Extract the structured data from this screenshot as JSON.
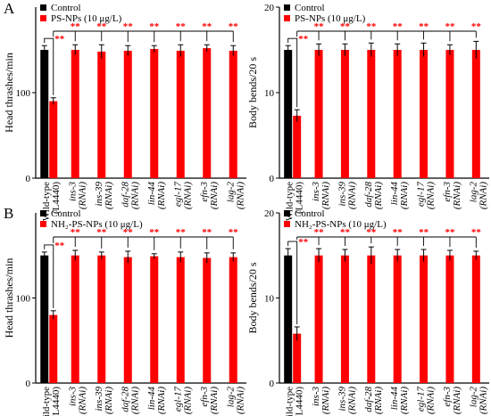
{
  "figure": {
    "panel_letters": [
      "A",
      "B"
    ]
  },
  "colors": {
    "control": "#000000",
    "treatment": "#ff0000",
    "significance": "#ff0000"
  },
  "chart_data": [
    {
      "id": "A-left",
      "type": "bar",
      "panel": "A",
      "title": "",
      "xlabel": "",
      "ylabel": "Head thrashes/min",
      "ylim": [
        0,
        200
      ],
      "yticks": [
        0,
        100
      ],
      "grid": false,
      "legend_position": "top-left",
      "categories": [
        {
          "line1": "Wild-type",
          "line2": "(L4440)",
          "italic": false
        },
        {
          "line1": "ins-3",
          "line2": "(RNAi)",
          "italic": true
        },
        {
          "line1": "ins-39",
          "line2": "(RNAi)",
          "italic": true
        },
        {
          "line1": "daf-28",
          "line2": "(RNAi)",
          "italic": true
        },
        {
          "line1": "lin-44",
          "line2": "(RNAi)",
          "italic": true
        },
        {
          "line1": "egl-17",
          "line2": "(RNAi)",
          "italic": true
        },
        {
          "line1": "efn-3",
          "line2": "(RNAi)",
          "italic": true
        },
        {
          "line1": "lag-2",
          "line2": "(RNAi)",
          "italic": true
        }
      ],
      "series": [
        {
          "name": "Control",
          "color": "#000000",
          "values": [
            150,
            null,
            null,
            null,
            null,
            null,
            null,
            null
          ],
          "errors": [
            5,
            null,
            null,
            null,
            null,
            null,
            null,
            null
          ]
        },
        {
          "name": "PS-NPs (10 μg/L)",
          "color": "#ff0000",
          "values": [
            90,
            150,
            148,
            149,
            151,
            149,
            152,
            149
          ],
          "errors": [
            4,
            6,
            8,
            6,
            4,
            7,
            4,
            6
          ]
        }
      ],
      "annotations": {
        "marker": "**",
        "vs_control": "**",
        "bracket_targets": [
          "**",
          "**",
          "**",
          "**",
          "**",
          "**",
          "**"
        ]
      }
    },
    {
      "id": "A-right",
      "type": "bar",
      "panel": "A",
      "title": "",
      "xlabel": "",
      "ylabel": "Body bends/20 s",
      "ylim": [
        0,
        20
      ],
      "yticks": [
        0,
        10,
        20
      ],
      "grid": false,
      "legend_position": "top-left",
      "categories": [
        {
          "line1": "Wild-type",
          "line2": "(L4440)",
          "italic": false
        },
        {
          "line1": "ins-3",
          "line2": "(RNAi)",
          "italic": true
        },
        {
          "line1": "ins-39",
          "line2": "(RNAi)",
          "italic": true
        },
        {
          "line1": "daf-28",
          "line2": "(RNAi)",
          "italic": true
        },
        {
          "line1": "lin-44",
          "line2": "(RNAi)",
          "italic": true
        },
        {
          "line1": "egl-17",
          "line2": "(RNAi)",
          "italic": true
        },
        {
          "line1": "efn-3",
          "line2": "(RNAi)",
          "italic": true
        },
        {
          "line1": "lag-2",
          "line2": "(RNAi)",
          "italic": true
        }
      ],
      "series": [
        {
          "name": "Control",
          "color": "#000000",
          "values": [
            15,
            null,
            null,
            null,
            null,
            null,
            null,
            null
          ],
          "errors": [
            0.5,
            null,
            null,
            null,
            null,
            null,
            null,
            null
          ]
        },
        {
          "name": "PS-NPs (10 μg/L)",
          "color": "#ff0000",
          "values": [
            7.3,
            15,
            15,
            15,
            15,
            15,
            15,
            15
          ],
          "errors": [
            0.7,
            0.7,
            0.7,
            0.8,
            0.7,
            0.8,
            0.6,
            1.0
          ]
        }
      ],
      "annotations": {
        "marker": "**",
        "vs_control": "**",
        "bracket_targets": [
          "**",
          "**",
          "**",
          "**",
          "**",
          "**",
          "**"
        ]
      }
    },
    {
      "id": "B-left",
      "type": "bar",
      "panel": "B",
      "title": "",
      "xlabel": "",
      "ylabel": "Head thrashes/min",
      "ylim": [
        0,
        200
      ],
      "yticks": [
        0,
        100
      ],
      "grid": false,
      "legend_position": "top-left",
      "categories": [
        {
          "line1": "Wild-type",
          "line2": "(L4440)",
          "italic": false
        },
        {
          "line1": "ins-3",
          "line2": "(RNAi)",
          "italic": true
        },
        {
          "line1": "ins-39",
          "line2": "(RNAi)",
          "italic": true
        },
        {
          "line1": "daf-28",
          "line2": "(RNAi)",
          "italic": true
        },
        {
          "line1": "lin-44",
          "line2": "(RNAi)",
          "italic": true
        },
        {
          "line1": "egl-17",
          "line2": "(RNAi)",
          "italic": true
        },
        {
          "line1": "efn-3",
          "line2": "(RNAi)",
          "italic": true
        },
        {
          "line1": "lag-2",
          "line2": "(RNAi)",
          "italic": true
        }
      ],
      "series": [
        {
          "name": "Control",
          "color": "#000000",
          "values": [
            150,
            null,
            null,
            null,
            null,
            null,
            null,
            null
          ],
          "errors": [
            4,
            null,
            null,
            null,
            null,
            null,
            null,
            null
          ]
        },
        {
          "name": "NH₂-PS-NPs (10 μg/L)",
          "color": "#ff0000",
          "values": [
            80,
            150,
            150,
            148,
            149,
            148,
            147,
            148
          ],
          "errors": [
            5,
            6,
            4,
            7,
            3,
            6,
            6,
            5
          ]
        }
      ],
      "annotations": {
        "marker": "**",
        "vs_control": "**",
        "bracket_targets": [
          "**",
          "**",
          "**",
          "**",
          "**",
          "**",
          "**"
        ]
      }
    },
    {
      "id": "B-right",
      "type": "bar",
      "panel": "B",
      "title": "",
      "xlabel": "",
      "ylabel": "Body bends/20 s",
      "ylim": [
        0,
        20
      ],
      "yticks": [
        0,
        10,
        20
      ],
      "grid": false,
      "legend_position": "top-left",
      "categories": [
        {
          "line1": "Wild-type",
          "line2": "(L4440)",
          "italic": false
        },
        {
          "line1": "ins-3",
          "line2": "(RNAi)",
          "italic": true
        },
        {
          "line1": "ins-39",
          "line2": "(RNAi)",
          "italic": true
        },
        {
          "line1": "daf-28",
          "line2": "(RNAi)",
          "italic": true
        },
        {
          "line1": "lin-44",
          "line2": "(RNAi)",
          "italic": true
        },
        {
          "line1": "egl-17",
          "line2": "(RNAi)",
          "italic": true
        },
        {
          "line1": "efn-3",
          "line2": "(RNAi)",
          "italic": true
        },
        {
          "line1": "lag-2",
          "line2": "(RNAi)",
          "italic": true
        }
      ],
      "series": [
        {
          "name": "Control",
          "color": "#000000",
          "values": [
            15,
            null,
            null,
            null,
            null,
            null,
            null,
            null
          ],
          "errors": [
            0.8,
            null,
            null,
            null,
            null,
            null,
            null,
            null
          ]
        },
        {
          "name": "NH₂-PS-NPs (10 μg/L)",
          "color": "#ff0000",
          "values": [
            5.8,
            15,
            15,
            15,
            15,
            15,
            15,
            15
          ],
          "errors": [
            0.8,
            0.8,
            0.7,
            1.0,
            0.7,
            0.7,
            0.6,
            0.5
          ]
        }
      ],
      "annotations": {
        "marker": "**",
        "vs_control": "**",
        "bracket_targets": [
          "**",
          "**",
          "**",
          "**",
          "**",
          "**",
          "**"
        ]
      }
    }
  ]
}
